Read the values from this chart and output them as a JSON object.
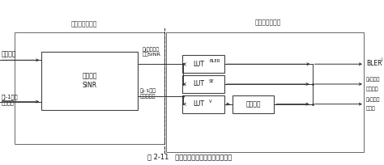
{
  "title": "图 2-11   码块级干扰消除的链路抽象框图",
  "bg_color": "#ffffff",
  "label_detect": "检测模块的模型",
  "label_decode": "译码模块的模型",
  "box_main_label_1": "计算有效",
  "box_main_label_2": "SINR",
  "input_top": "信道信息",
  "input_bottom_1": "第j-1次选",
  "input_bottom_2": "代的干扰",
  "arrow_top_label_1": "第j次选代的",
  "arrow_top_label_2": "有效SINR",
  "arrow_bot_label_1": "第j-1次选",
  "arrow_bot_label_2": "代的软比特",
  "lut_bler_main": "LUT",
  "lut_bler_sub": "BLER",
  "lut_se_main": "LUT",
  "lut_se_sub": "SE",
  "lut_v_main": "LUT",
  "lut_v_sub": "V",
  "calib_label": "校正因子",
  "out_top_main": "BLER",
  "out_top_sub": "j",
  "out_mid_1": "第j次选代",
  "out_mid_2": "的软比特",
  "out_bot_1": "第j次选代",
  "out_bot_2": "的干扰"
}
